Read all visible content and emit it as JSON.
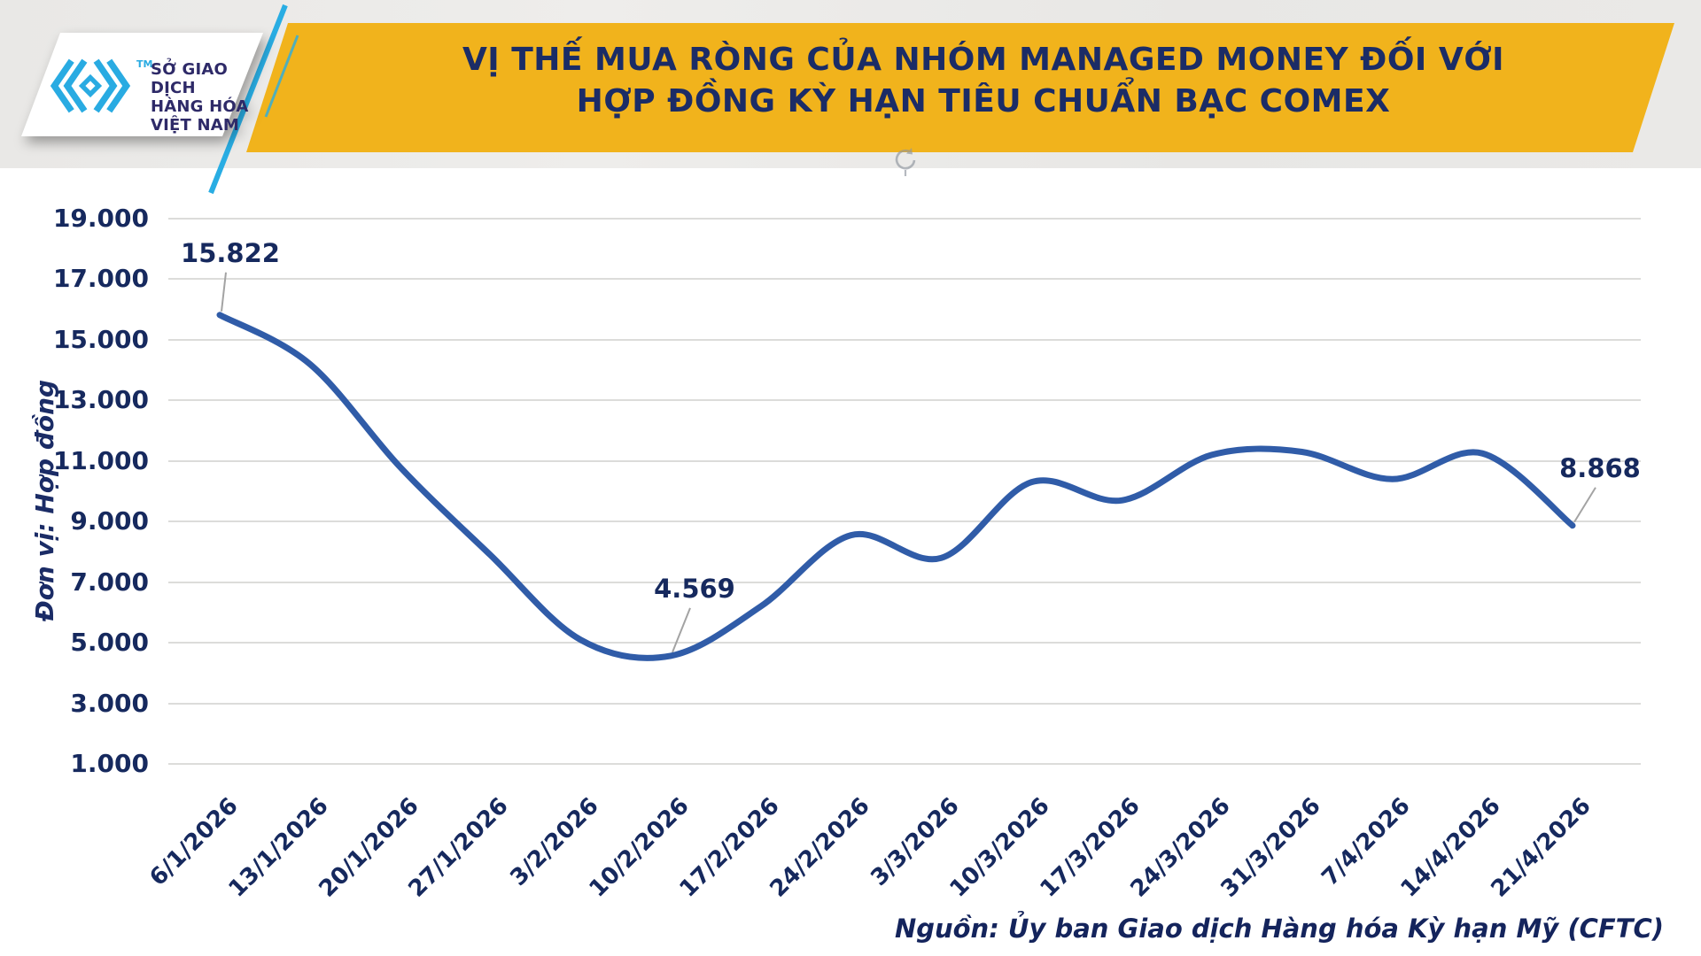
{
  "header": {
    "title_line1": "VỊ THẾ MUA RÒNG CỦA NHÓM MANAGED MONEY ĐỐI VỚI",
    "title_line2": "HỢP ĐỒNG KỲ HẠN TIÊU CHUẨN BẠC COMEX",
    "logo": {
      "tm": "TM",
      "org_lines": [
        "SỞ GIAO DỊCH",
        "HÀNG HÓA",
        "VIỆT NAM"
      ]
    },
    "colors": {
      "banner_yellow": "#F1B31C",
      "title_navy": "#1B2C66",
      "accent_cyan": "#29ADE3",
      "logo_blue": "#29ABE2"
    }
  },
  "chart_data": {
    "type": "line",
    "title": "VỊ THẾ MUA RÒNG CỦA NHÓM MANAGED MONEY ĐỐI VỚI HỢP ĐỒNG KỲ HẠN TIÊU CHUẨN BẠC COMEX",
    "ylabel": "Đơn vị: Hợp đồng",
    "categories": [
      "6/1/2026",
      "13/1/2026",
      "20/1/2026",
      "27/1/2026",
      "3/2/2026",
      "10/2/2026",
      "17/2/2026",
      "24/2/2026",
      "3/3/2026",
      "10/3/2026",
      "17/3/2026",
      "24/3/2026",
      "31/3/2026",
      "7/4/2026",
      "14/4/2026",
      "21/4/2026"
    ],
    "values": [
      15822,
      14200,
      10800,
      7900,
      5100,
      4569,
      6200,
      8550,
      7800,
      10300,
      9700,
      11200,
      11300,
      10400,
      11250,
      8868
    ],
    "ylim": [
      1000,
      19000
    ],
    "ytick_labels": [
      "19.000",
      "17.000",
      "15.000",
      "13.000",
      "11.000",
      "9.000",
      "7.000",
      "5.000",
      "3.000",
      "1.000"
    ],
    "grid": "horizontal",
    "legend": "none",
    "line_color": "#305CA8",
    "annotations": [
      {
        "index": 0,
        "label": "15.822"
      },
      {
        "index": 5,
        "label": "4.569"
      },
      {
        "index": 15,
        "label": "8.868"
      }
    ]
  },
  "source": "Nguồn: Ủy ban Giao dịch Hàng hóa Kỳ hạn Mỹ (CFTC)"
}
